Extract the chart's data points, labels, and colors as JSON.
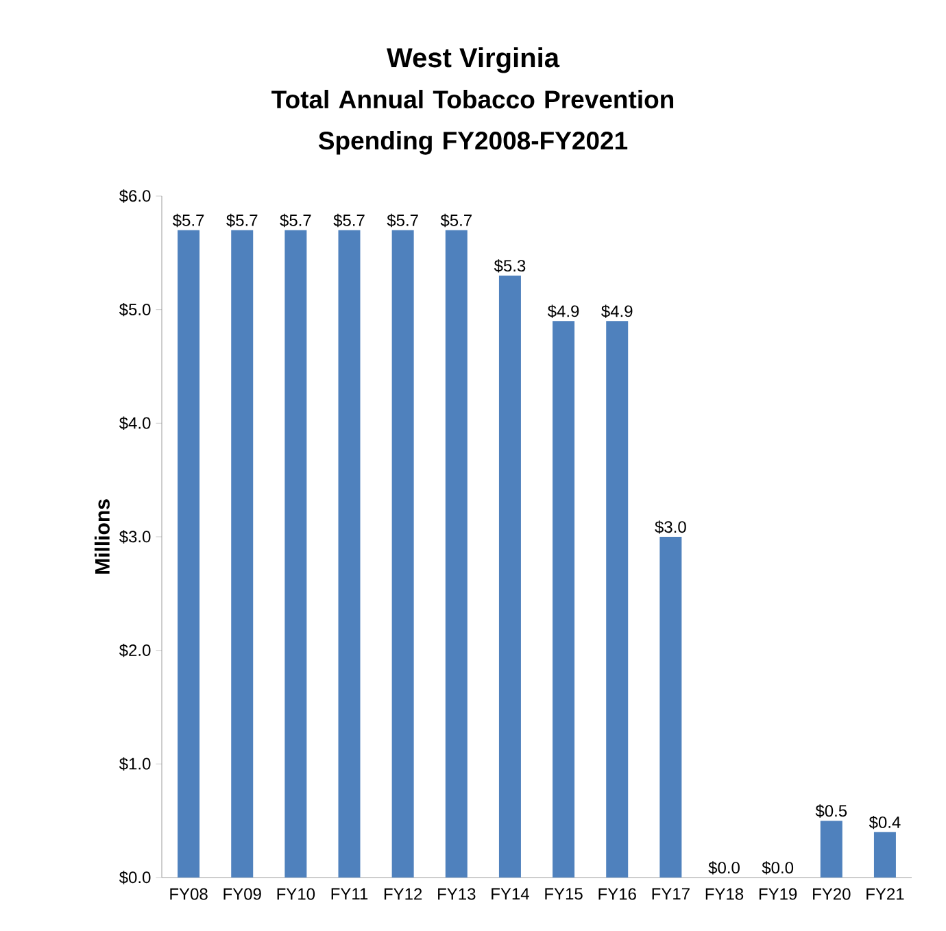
{
  "chart_data": {
    "type": "bar",
    "title": "West Virginia",
    "subtitle": "Total Annual Tobacco Prevention Spending FY2008-FY2021",
    "ylabel": "Millions",
    "categories": [
      "FY08",
      "FY09",
      "FY10",
      "FY11",
      "FY12",
      "FY13",
      "FY14",
      "FY15",
      "FY16",
      "FY17",
      "FY18",
      "FY19",
      "FY20",
      "FY21"
    ],
    "values": [
      5.7,
      5.7,
      5.7,
      5.7,
      5.7,
      5.7,
      5.3,
      4.9,
      4.9,
      3.0,
      0.0,
      0.0,
      0.5,
      0.4
    ],
    "value_labels": [
      "$5.7",
      "$5.7",
      "$5.7",
      "$5.7",
      "$5.7",
      "$5.7",
      "$5.3",
      "$4.9",
      "$4.9",
      "$3.0",
      "$0.0",
      "$0.0",
      "$0.5",
      "$0.4"
    ],
    "color": "#4f81bd",
    "ylim": [
      0,
      6
    ],
    "yticks": [
      {
        "value": 0,
        "label": "$0.0"
      },
      {
        "value": 1,
        "label": "$1.0"
      },
      {
        "value": 2,
        "label": "$2.0"
      },
      {
        "value": 3,
        "label": "$3.0"
      },
      {
        "value": 4,
        "label": "$4.0"
      },
      {
        "value": 5,
        "label": "$5.0"
      },
      {
        "value": 6,
        "label": "$6.0"
      }
    ]
  }
}
